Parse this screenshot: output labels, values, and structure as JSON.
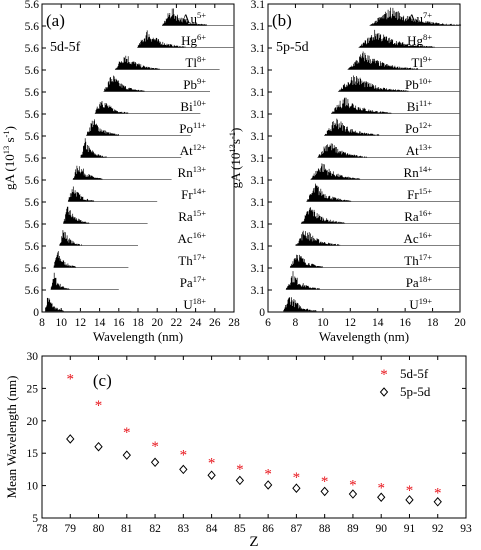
{
  "colors": {
    "axis": "#000000",
    "spectrum": "#000000",
    "baseline": "#555555",
    "series_5d5f": "#e8141b",
    "series_5p5d": "#000000"
  },
  "chart_data": [
    {
      "type": "area",
      "panel_label": "(a)",
      "transition": "5d-5f",
      "xlabel": "Wavelength (nm)",
      "ylabel_main": "gA (10",
      "ylabel_exp": "13",
      "ylabel_tail": " s",
      "ylabel_exp2": "-1",
      "ylabel_end": ")",
      "xlim": [
        8,
        28
      ],
      "x_ticks": [
        "8",
        "10",
        "12",
        "14",
        "16",
        "18",
        "20",
        "22",
        "24",
        "26",
        "28"
      ],
      "y_ticks": [
        "0",
        "5.6",
        "5.6",
        "5.6",
        "5.6",
        "5.6",
        "5.6",
        "5.6",
        "5.6",
        "5.6",
        "5.6",
        "5.6",
        "5.6",
        "5.6",
        "5.6"
      ],
      "series": [
        {
          "ion": "U",
          "charge": "18+",
          "start": 8.3,
          "peak": 8.6,
          "end": 17.3
        },
        {
          "ion": "Pa",
          "charge": "17+",
          "start": 8.9,
          "peak": 9.2,
          "end": 16.0
        },
        {
          "ion": "Th",
          "charge": "17+",
          "start": 9.2,
          "peak": 9.6,
          "end": 17.0
        },
        {
          "ion": "Ac",
          "charge": "16+",
          "start": 9.8,
          "peak": 10.2,
          "end": 18.0
        },
        {
          "ion": "Ra",
          "charge": "15+",
          "start": 10.2,
          "peak": 10.7,
          "end": 19.0
        },
        {
          "ion": "Fr",
          "charge": "14+",
          "start": 10.7,
          "peak": 11.2,
          "end": 20.0
        },
        {
          "ion": "Rn",
          "charge": "13+",
          "start": 11.2,
          "peak": 11.8,
          "end": 21.5
        },
        {
          "ion": "At",
          "charge": "12+",
          "start": 12.0,
          "peak": 12.5,
          "end": 22.5
        },
        {
          "ion": "Po",
          "charge": "11+",
          "start": 12.6,
          "peak": 13.3,
          "end": 23.5
        },
        {
          "ion": "Bi",
          "charge": "10+",
          "start": 13.5,
          "peak": 14.2,
          "end": 24.5
        },
        {
          "ion": "Pb",
          "charge": "9+",
          "start": 14.4,
          "peak": 15.3,
          "end": 25.5
        },
        {
          "ion": "Tl",
          "charge": "8+",
          "start": 15.6,
          "peak": 16.6,
          "end": 26.5
        },
        {
          "ion": "Hg",
          "charge": "6+",
          "start": 17.9,
          "peak": 19.0,
          "end": 28.0
        },
        {
          "ion": "Au",
          "charge": "5+",
          "start": 20.5,
          "peak": 21.5,
          "end": 28.0
        }
      ]
    },
    {
      "type": "area",
      "panel_label": "(b)",
      "transition": "5p-5d",
      "xlabel": "Wavelength (nm)",
      "ylabel_main": "gA (10",
      "ylabel_exp": "13",
      "ylabel_tail": "s",
      "ylabel_exp2": "-1",
      "ylabel_end": ")",
      "xlim": [
        6,
        20
      ],
      "x_ticks": [
        "6",
        "8",
        "10",
        "12",
        "14",
        "16",
        "18",
        "20"
      ],
      "y_ticks": [
        "0",
        "3.1",
        "3.1",
        "3.1",
        "3.1",
        "3.1",
        "3.1",
        "3.1",
        "3.1",
        "3.1",
        "3.1",
        "3.1",
        "3.1",
        "3.1",
        "3.1"
      ],
      "series": [
        {
          "ion": "U",
          "charge": "19+",
          "start": 7.1,
          "peak": 7.6,
          "end": 20.0
        },
        {
          "ion": "Pa",
          "charge": "18+",
          "start": 7.3,
          "peak": 7.8,
          "end": 20.0
        },
        {
          "ion": "Th",
          "charge": "17+",
          "start": 7.6,
          "peak": 8.1,
          "end": 20.0
        },
        {
          "ion": "Ac",
          "charge": "16+",
          "start": 8.0,
          "peak": 8.7,
          "end": 20.0
        },
        {
          "ion": "Ra",
          "charge": "16+",
          "start": 8.4,
          "peak": 9.1,
          "end": 20.0
        },
        {
          "ion": "Fr",
          "charge": "15+",
          "start": 8.8,
          "peak": 9.5,
          "end": 20.0
        },
        {
          "ion": "Rn",
          "charge": "14+",
          "start": 9.1,
          "peak": 9.9,
          "end": 20.0
        },
        {
          "ion": "At",
          "charge": "13+",
          "start": 9.6,
          "peak": 10.4,
          "end": 20.0
        },
        {
          "ion": "Po",
          "charge": "12+",
          "start": 10.1,
          "peak": 11.0,
          "end": 20.0
        },
        {
          "ion": "Bi",
          "charge": "11+",
          "start": 10.6,
          "peak": 11.6,
          "end": 20.0
        },
        {
          "ion": "Pb",
          "charge": "10+",
          "start": 11.1,
          "peak": 12.3,
          "end": 20.0
        },
        {
          "ion": "Tl",
          "charge": "9+",
          "start": 11.8,
          "peak": 13.0,
          "end": 20.0
        },
        {
          "ion": "Hg",
          "charge": "8+",
          "start": 12.6,
          "peak": 13.9,
          "end": 20.0
        },
        {
          "ion": "Au",
          "charge": "7+",
          "start": 13.4,
          "peak": 15.0,
          "end": 20.0
        }
      ]
    },
    {
      "type": "scatter",
      "panel_label": "(c)",
      "xlabel": "Z",
      "ylabel": "Mean Wavelength (nm)",
      "xlim": [
        78,
        93
      ],
      "ylim": [
        5,
        30
      ],
      "x_ticks": [
        "78",
        "79",
        "80",
        "81",
        "82",
        "83",
        "84",
        "85",
        "86",
        "87",
        "88",
        "89",
        "90",
        "91",
        "92",
        "93"
      ],
      "y_ticks": [
        "5",
        "10",
        "15",
        "20",
        "25",
        "30"
      ],
      "legend_position": "top-right",
      "series": [
        {
          "name": "5d-5f",
          "marker": "*",
          "x": [
            79,
            80,
            81,
            82,
            83,
            84,
            85,
            86,
            87,
            88,
            89,
            90,
            91,
            92
          ],
          "y": [
            26.5,
            22.4,
            18.3,
            16.1,
            14.8,
            13.6,
            12.6,
            11.9,
            11.3,
            10.7,
            10.2,
            9.7,
            9.3,
            8.9
          ]
        },
        {
          "name": "5p-5d",
          "marker": "diamond",
          "x": [
            79,
            80,
            81,
            82,
            83,
            84,
            85,
            86,
            87,
            88,
            89,
            90,
            91,
            92
          ],
          "y": [
            17.2,
            16.0,
            14.7,
            13.6,
            12.5,
            11.6,
            10.8,
            10.1,
            9.6,
            9.1,
            8.7,
            8.2,
            7.8,
            7.5
          ]
        }
      ]
    }
  ]
}
